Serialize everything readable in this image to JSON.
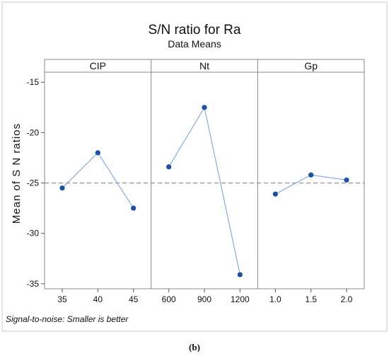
{
  "chart_data": {
    "type": "line",
    "title": "S/N ratio for Ra",
    "subtitle": "Data Means",
    "ylabel": "Mean of S N ratios",
    "ylim": [
      -35.5,
      -14
    ],
    "yticks": [
      "-15",
      "-20",
      "-25",
      "-30",
      "-35"
    ],
    "reference_line": -25,
    "footnote": "Signal-to-noise: Smaller is better",
    "caption": "(b)",
    "series_color": "#1f4fa3",
    "line_color": "#7aa6e0",
    "grid": false,
    "panels": [
      {
        "name": "CIP",
        "x": [
          "35",
          "40",
          "45"
        ],
        "values": [
          -25.5,
          -22.0,
          -27.5
        ]
      },
      {
        "name": "Nt",
        "x": [
          "600",
          "900",
          "1200"
        ],
        "values": [
          -23.4,
          -17.5,
          -34.1
        ]
      },
      {
        "name": "Gp",
        "x": [
          "1.0",
          "1.5",
          "2.0"
        ],
        "values": [
          -26.1,
          -24.2,
          -24.7
        ]
      }
    ]
  }
}
